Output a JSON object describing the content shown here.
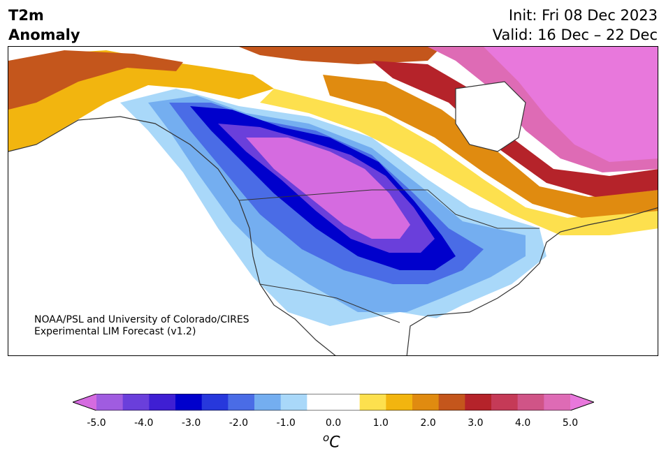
{
  "title": {
    "left_line1": "T2m",
    "left_line2": "Anomaly",
    "init": "Init: Fri 08 Dec 2023",
    "valid": "Valid: 16 Dec – 22 Dec"
  },
  "credit": {
    "line1": "NOAA/PSL and University of Colorado/CIRES",
    "line2": "Experimental LIM Forecast (v1.2)"
  },
  "colorbar": {
    "units_sup": "o",
    "units_main": "C",
    "colors": [
      "#d56be0",
      "#a05ce0",
      "#6a3fdb",
      "#3f1fd3",
      "#0000cc",
      "#2738dc",
      "#4a6ce6",
      "#74aef0",
      "#a9d8f9",
      "#ffffff",
      "#ffffff",
      "#fde04e",
      "#f2b50f",
      "#e08b10",
      "#c4561c",
      "#b5232a",
      "#c53a57",
      "#d05487",
      "#de6bb5",
      "#e878dc"
    ],
    "ticks": [
      "-5.0",
      "-4.0",
      "-3.0",
      "-2.0",
      "-1.0",
      "0.0",
      "1.0",
      "2.0",
      "3.0",
      "4.0",
      "5.0"
    ]
  },
  "map": {
    "region": "North America",
    "field": "2 m temperature anomaly"
  }
}
